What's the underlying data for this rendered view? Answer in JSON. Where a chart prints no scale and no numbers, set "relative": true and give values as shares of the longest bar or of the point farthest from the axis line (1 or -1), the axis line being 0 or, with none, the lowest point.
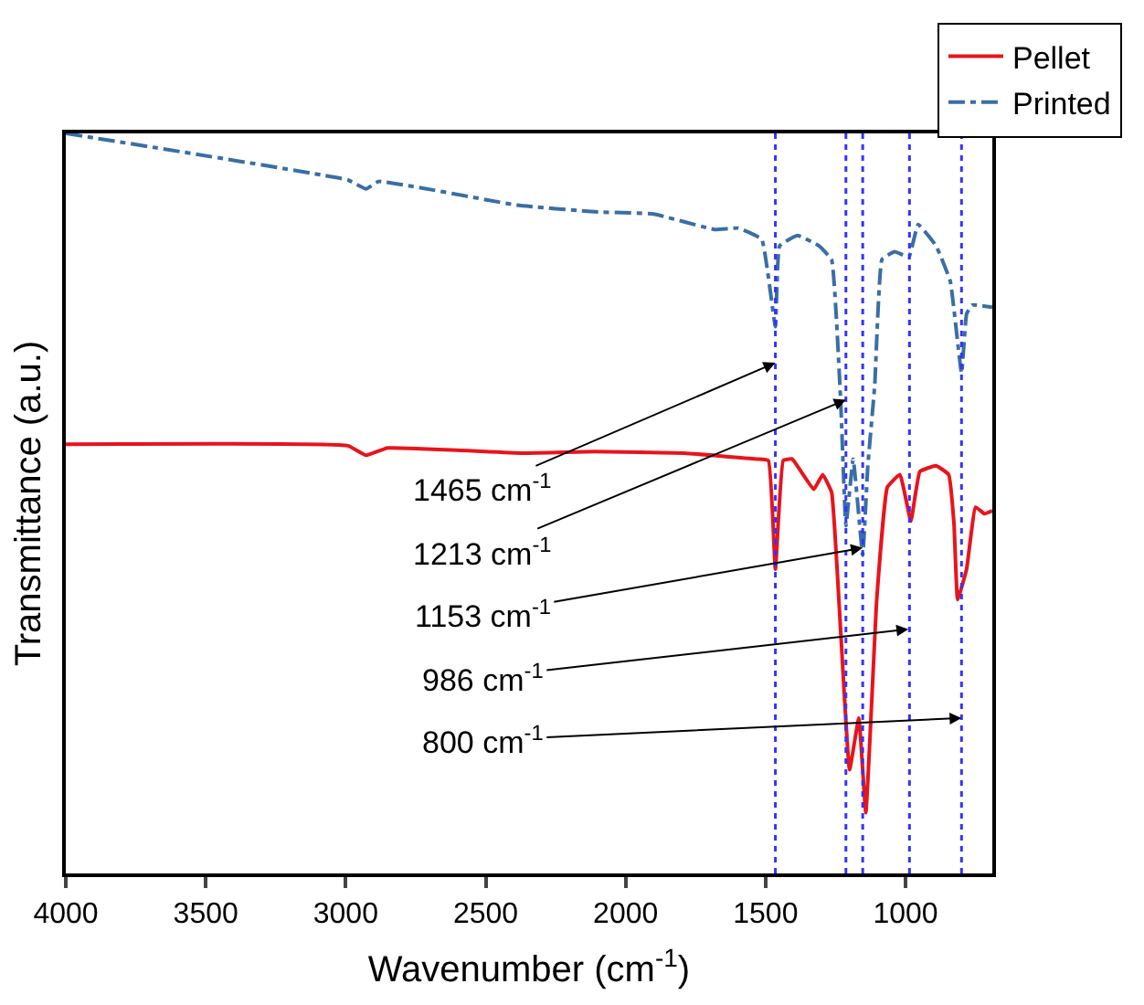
{
  "chart_data": {
    "type": "line",
    "relative": true,
    "xlabel": "Wavenumber (cm$^{-1}$)",
    "ylabel": "Transmittance (a.u.)",
    "xlim": [
      4000,
      690
    ],
    "xticks": [
      4000,
      3500,
      3000,
      2500,
      2000,
      1500,
      1000
    ],
    "legend": "top right",
    "tick_labels": "x",
    "series": [
      {
        "name": "Pellet",
        "color": "#e8141c",
        "line_style": "solid",
        "x": [
          4000,
          2992,
          2927,
          2850,
          2368,
          2112,
          1790,
          1534,
          1490,
          1465,
          1437,
          1405,
          1328,
          1296,
          1264,
          1232,
          1200,
          1167,
          1142,
          1103,
          1065,
          1020,
          981,
          949,
          891,
          846,
          827,
          814,
          782,
          750,
          718,
          690
        ],
        "values": [
          0.58,
          0.578,
          0.565,
          0.575,
          0.568,
          0.57,
          0.568,
          0.56,
          0.558,
          0.411,
          0.558,
          0.56,
          0.519,
          0.539,
          0.515,
          0.329,
          0.14,
          0.21,
          0.082,
          0.37,
          0.522,
          0.539,
          0.476,
          0.543,
          0.551,
          0.539,
          0.473,
          0.37,
          0.411,
          0.495,
          0.486,
          0.49
        ]
      },
      {
        "name": "Printed",
        "color": "#3a6ea5",
        "line_style": "dashdot",
        "x": [
          4000,
          2992,
          2927,
          2882,
          2388,
          2112,
          1900,
          1681,
          1598,
          1514,
          1465,
          1450,
          1386,
          1309,
          1264,
          1232,
          1213,
          1187,
          1153,
          1135,
          1110,
          1084,
          1039,
          988,
          955,
          891,
          840,
          800,
          782,
          763,
          690
        ],
        "values": [
          1.0,
          0.937,
          0.925,
          0.935,
          0.903,
          0.894,
          0.891,
          0.87,
          0.872,
          0.857,
          0.739,
          0.848,
          0.862,
          0.848,
          0.829,
          0.64,
          0.47,
          0.56,
          0.43,
          0.55,
          0.66,
          0.83,
          0.84,
          0.833,
          0.877,
          0.848,
          0.8,
          0.676,
          0.756,
          0.768,
          0.765
        ]
      }
    ],
    "ref_lines": [
      {
        "axis": "x",
        "value": 1465,
        "color": "#3333ff",
        "line_style": "dotted"
      },
      {
        "axis": "x",
        "value": 1213,
        "color": "#3333ff",
        "line_style": "dotted"
      },
      {
        "axis": "x",
        "value": 1153,
        "color": "#3333ff",
        "line_style": "dotted"
      },
      {
        "axis": "x",
        "value": 986,
        "color": "#3333ff",
        "line_style": "dotted"
      },
      {
        "axis": "x",
        "value": 800,
        "color": "#3333ff",
        "line_style": "dotted"
      }
    ],
    "annotations": [
      {
        "text": "1465 cm$^{-1}$",
        "x": 1465,
        "y": 0.69
      },
      {
        "text": "1213 cm$^{-1}$",
        "x": 1213,
        "y": 0.64
      },
      {
        "text": "1153 cm$^{-1}$",
        "x": 1153,
        "y": 0.44
      },
      {
        "text": "986 cm$^{-1}$",
        "x": 990,
        "y": 0.33
      },
      {
        "text": "800 cm$^{-1}$",
        "x": 800,
        "y": 0.21
      }
    ]
  }
}
